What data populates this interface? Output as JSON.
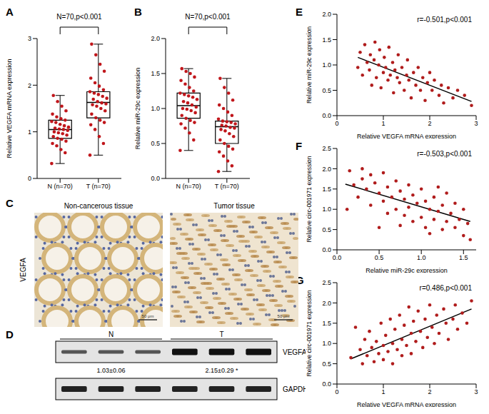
{
  "chart_data": [
    {
      "type": "box",
      "panel": "A",
      "annotation": "N=70,p<0.001",
      "ylabel": "Relative VEGFA mRNA expression",
      "categories": [
        "N (n=70)",
        "T (n=70)"
      ],
      "color": "#c0161b",
      "ylim": [
        0,
        3
      ],
      "yticks": [
        0,
        1,
        2,
        3
      ],
      "values": [
        [
          0.32,
          0.55,
          0.62,
          0.7,
          0.75,
          0.8,
          0.84,
          0.86,
          0.9,
          0.93,
          0.96,
          0.98,
          1.0,
          1.03,
          1.05,
          1.06,
          1.08,
          1.1,
          1.13,
          1.16,
          1.2,
          1.22,
          1.25,
          1.28,
          1.32,
          1.38,
          1.45,
          1.55,
          1.65,
          1.78
        ],
        [
          0.5,
          0.75,
          0.9,
          1.05,
          1.15,
          1.2,
          1.25,
          1.3,
          1.38,
          1.45,
          1.5,
          1.55,
          1.58,
          1.6,
          1.62,
          1.65,
          1.7,
          1.72,
          1.76,
          1.8,
          1.83,
          1.86,
          1.9,
          1.98,
          2.05,
          2.15,
          2.3,
          2.45,
          2.65,
          2.88
        ]
      ],
      "box": [
        {
          "min": 0.32,
          "q1": 0.86,
          "median": 1.05,
          "q3": 1.25,
          "max": 1.78
        },
        {
          "min": 0.5,
          "q1": 1.3,
          "median": 1.63,
          "q3": 1.86,
          "max": 2.88
        }
      ]
    },
    {
      "type": "box",
      "panel": "B",
      "annotation": "N=70,p<0.001",
      "ylabel": "Relative miR-29c expression",
      "categories": [
        "N (n=70)",
        "T (n=70)"
      ],
      "color": "#c0161b",
      "ylim": [
        0,
        2
      ],
      "yticks": [
        {
          "value": 0,
          "label": "0.0"
        },
        {
          "value": 0.5,
          "label": "0.5"
        },
        {
          "value": 1,
          "label": "1.0"
        },
        {
          "value": 1.5,
          "label": "1.5"
        },
        {
          "value": 2,
          "label": "2.0"
        }
      ],
      "values": [
        [
          0.4,
          0.55,
          0.65,
          0.72,
          0.78,
          0.8,
          0.83,
          0.86,
          0.9,
          0.94,
          0.97,
          0.99,
          1.0,
          1.02,
          1.05,
          1.08,
          1.1,
          1.13,
          1.16,
          1.18,
          1.2,
          1.22,
          1.25,
          1.3,
          1.35,
          1.4,
          1.45,
          1.5,
          1.53,
          1.57
        ],
        [
          0.1,
          0.18,
          0.25,
          0.32,
          0.38,
          0.42,
          0.46,
          0.5,
          0.55,
          0.6,
          0.64,
          0.68,
          0.7,
          0.72,
          0.73,
          0.75,
          0.76,
          0.78,
          0.8,
          0.81,
          0.82,
          0.85,
          0.9,
          0.95,
          1.0,
          1.05,
          1.12,
          1.22,
          1.3,
          1.43
        ]
      ],
      "box": [
        {
          "min": 0.4,
          "q1": 0.86,
          "median": 1.04,
          "q3": 1.22,
          "max": 1.57
        },
        {
          "min": 0.1,
          "q1": 0.5,
          "median": 0.74,
          "q3": 0.82,
          "max": 1.43
        }
      ]
    },
    {
      "type": "scatter",
      "panel": "E",
      "annotation": "r=-0.501,p<0.001",
      "xlabel": "Relative VEGFA mRNA expression",
      "ylabel": "Relative  miR-29c expression",
      "color": "#b01c1c",
      "xlim": [
        0,
        3
      ],
      "xticks": [
        0,
        1,
        2,
        3
      ],
      "ylim": [
        0,
        2
      ],
      "yticks": [
        {
          "value": 0,
          "label": "0.0"
        },
        {
          "value": 0.5,
          "label": "0.5"
        },
        {
          "value": 1,
          "label": "1.0"
        },
        {
          "value": 1.5,
          "label": "1.5"
        },
        {
          "value": 2,
          "label": "2.0"
        }
      ],
      "x": [
        0.45,
        0.5,
        0.55,
        0.6,
        0.65,
        0.7,
        0.72,
        0.75,
        0.8,
        0.82,
        0.85,
        0.9,
        0.92,
        0.95,
        1.0,
        1.02,
        1.05,
        1.1,
        1.12,
        1.15,
        1.2,
        1.22,
        1.25,
        1.3,
        1.32,
        1.35,
        1.4,
        1.45,
        1.5,
        1.52,
        1.55,
        1.6,
        1.65,
        1.7,
        1.75,
        1.8,
        1.85,
        1.9,
        1.95,
        2.0,
        2.05,
        2.1,
        2.2,
        2.25,
        2.3,
        2.4,
        2.5,
        2.6,
        2.75,
        2.9
      ],
      "values": [
        0.95,
        1.25,
        0.8,
        1.4,
        1.05,
        0.9,
        1.2,
        0.6,
        1.1,
        1.45,
        0.75,
        1.0,
        1.3,
        0.55,
        0.85,
        1.15,
        0.95,
        0.7,
        1.35,
        0.8,
        1.05,
        0.45,
        0.9,
        0.75,
        1.2,
        0.65,
        0.95,
        0.5,
        0.8,
        1.1,
        0.7,
        0.35,
        0.85,
        0.6,
        0.95,
        0.5,
        0.75,
        0.3,
        0.65,
        0.85,
        0.5,
        0.7,
        0.4,
        0.6,
        0.25,
        0.55,
        0.35,
        0.5,
        0.4,
        0.2
      ],
      "fit": {
        "x": [
          0.45,
          2.9
        ],
        "values": [
          1.15,
          0.28
        ]
      }
    },
    {
      "type": "scatter",
      "panel": "F",
      "annotation": "r=-0.503,p<0.001",
      "xlabel": "Relative  miR-29c expression",
      "ylabel": "Relative circ-001971 expression",
      "color": "#b01c1c",
      "xlim": [
        0,
        1.65
      ],
      "xticks": [
        {
          "value": 0,
          "label": "0.0"
        },
        {
          "value": 0.5,
          "label": "0.5"
        },
        {
          "value": 1,
          "label": "1.0"
        },
        {
          "value": 1.5,
          "label": "1.5"
        }
      ],
      "ylim": [
        0,
        2.5
      ],
      "yticks": [
        {
          "value": 0,
          "label": "0.0"
        },
        {
          "value": 0.5,
          "label": "0.5"
        },
        {
          "value": 1,
          "label": "1.0"
        },
        {
          "value": 1.5,
          "label": "1.5"
        },
        {
          "value": 2,
          "label": "2.0"
        },
        {
          "value": 2.5,
          "label": "2.5"
        }
      ],
      "x": [
        0.12,
        0.15,
        0.2,
        0.25,
        0.3,
        0.3,
        0.35,
        0.4,
        0.4,
        0.45,
        0.5,
        0.5,
        0.55,
        0.55,
        0.6,
        0.6,
        0.65,
        0.7,
        0.7,
        0.75,
        0.75,
        0.8,
        0.8,
        0.85,
        0.85,
        0.9,
        0.9,
        0.95,
        1.0,
        1.0,
        1.05,
        1.05,
        1.1,
        1.1,
        1.15,
        1.15,
        1.2,
        1.25,
        1.25,
        1.3,
        1.3,
        1.35,
        1.4,
        1.4,
        1.45,
        1.5,
        1.5,
        1.55,
        1.58,
        1.2
      ],
      "values": [
        1.0,
        1.95,
        1.6,
        1.3,
        2.0,
        1.75,
        1.5,
        1.85,
        1.1,
        1.65,
        1.4,
        0.55,
        1.9,
        1.2,
        1.55,
        0.9,
        1.3,
        1.7,
        1.0,
        1.45,
        0.6,
        1.25,
        0.85,
        1.6,
        1.05,
        1.35,
        0.7,
        1.15,
        1.5,
        0.8,
        1.2,
        0.55,
        1.0,
        0.4,
        1.3,
        0.75,
        0.95,
        0.5,
        1.1,
        0.7,
        1.4,
        0.9,
        0.55,
        1.15,
        0.75,
        0.35,
        1.0,
        0.65,
        0.25,
        1.55
      ],
      "fit": {
        "x": [
          0.1,
          1.58
        ],
        "values": [
          1.62,
          0.7
        ]
      }
    },
    {
      "type": "scatter",
      "panel": "G",
      "annotation": "r=0.486,p<0.001",
      "xlabel": "Relative VEGFA mRNA expression",
      "ylabel": "Relative circ-001971 expression",
      "color": "#b01c1c",
      "xlim": [
        0,
        3
      ],
      "xticks": [
        0,
        1,
        2,
        3
      ],
      "ylim": [
        0,
        2.5
      ],
      "yticks": [
        {
          "value": 0,
          "label": "0.0"
        },
        {
          "value": 0.5,
          "label": "0.5"
        },
        {
          "value": 1,
          "label": "1.0"
        },
        {
          "value": 1.5,
          "label": "1.5"
        },
        {
          "value": 2,
          "label": "2.0"
        },
        {
          "value": 2.5,
          "label": "2.5"
        }
      ],
      "x": [
        0.3,
        0.4,
        0.5,
        0.55,
        0.6,
        0.65,
        0.7,
        0.75,
        0.8,
        0.85,
        0.9,
        0.95,
        1.0,
        1.0,
        1.05,
        1.1,
        1.15,
        1.2,
        1.2,
        1.25,
        1.3,
        1.35,
        1.4,
        1.4,
        1.45,
        1.5,
        1.55,
        1.6,
        1.6,
        1.65,
        1.7,
        1.75,
        1.8,
        1.85,
        1.9,
        1.95,
        2.0,
        2.05,
        2.1,
        2.15,
        2.2,
        2.3,
        2.35,
        2.4,
        2.5,
        2.55,
        2.6,
        2.7,
        2.8,
        2.9
      ],
      "values": [
        0.65,
        1.4,
        0.85,
        0.5,
        1.1,
        0.7,
        1.3,
        0.9,
        0.55,
        1.05,
        0.75,
        1.5,
        0.95,
        0.6,
        1.2,
        0.8,
        1.6,
        1.0,
        0.5,
        1.35,
        0.85,
        1.7,
        1.1,
        0.7,
        1.45,
        0.95,
        1.9,
        1.25,
        0.75,
        1.55,
        1.05,
        1.8,
        1.3,
        0.9,
        1.6,
        1.15,
        1.95,
        1.4,
        1.0,
        1.7,
        1.25,
        1.85,
        1.5,
        1.1,
        1.6,
        1.95,
        1.35,
        1.75,
        1.5,
        2.05
      ],
      "fit": {
        "x": [
          0.3,
          2.9
        ],
        "values": [
          0.62,
          1.85
        ]
      }
    }
  ],
  "images": {
    "panel": "C",
    "row_label": "VEGFA",
    "titles": [
      "Non-cancerous tissue",
      "Tumor tissue"
    ],
    "scale_bar": "50 μm"
  },
  "blot": {
    "panel": "D",
    "groups": [
      "N",
      "T"
    ],
    "rows": [
      "VEGFA",
      "GAPDH"
    ],
    "quantification": [
      "1.03±0.06",
      "2.15±0.29 *"
    ]
  }
}
